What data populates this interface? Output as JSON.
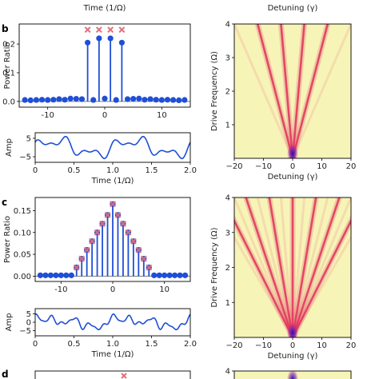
{
  "figure": {
    "top_labels": [
      "Time (1/Ω)",
      "Detuning (γ)"
    ],
    "panel_letters": [
      "b",
      "c",
      "d"
    ]
  },
  "colors": {
    "stem": "#1f4fd6",
    "marker_theory": "#e0707c",
    "baseline": "#888888",
    "heat_background": "#f7f4b8",
    "heat_line": "#e0305a",
    "heat_center": "#3a1fbf"
  },
  "chart_data": [
    {
      "id": "b-power",
      "type": "stem",
      "ylabel": "Power Ratio",
      "xlim": [
        -15,
        15
      ],
      "ylim": [
        -0.02,
        0.27
      ],
      "xticks": [
        -10,
        0,
        10
      ],
      "yticks": [
        0.0,
        0.1,
        0.2
      ],
      "ytick_labels": [
        "0.0",
        "0.1",
        "0.2"
      ],
      "x": [
        -14,
        -13,
        -12,
        -11,
        -10,
        -9,
        -8,
        -7,
        -6,
        -5,
        -4,
        -3,
        -2,
        -1,
        0,
        1,
        2,
        3,
        4,
        5,
        6,
        7,
        8,
        9,
        10,
        11,
        12,
        13,
        14
      ],
      "values": [
        0.005,
        0.004,
        0.005,
        0.006,
        0.005,
        0.006,
        0.008,
        0.006,
        0.01,
        0.009,
        0.008,
        0.205,
        0.005,
        0.22,
        0.01,
        0.22,
        0.005,
        0.205,
        0.008,
        0.009,
        0.01,
        0.006,
        0.008,
        0.006,
        0.005,
        0.006,
        0.005,
        0.004,
        0.005
      ],
      "theory_x": [
        -3,
        -1,
        1,
        3
      ],
      "theory_y": [
        0.25,
        0.25,
        0.25,
        0.25
      ]
    },
    {
      "id": "b-drive",
      "type": "line",
      "xlabel": "Time (1/Ω)",
      "ylabel": "Amp",
      "xlim": [
        0,
        2
      ],
      "ylim": [
        -8,
        8
      ],
      "xticks": [
        0,
        0.5,
        1.0,
        1.5,
        2.0
      ],
      "xtick_labels": [
        "0",
        "0.5",
        "1.0",
        "1.5",
        "2.0"
      ],
      "yticks": [
        5,
        -5
      ],
      "ytick_labels": [
        "5",
        "−5"
      ],
      "components": [
        [
          1,
          3.5,
          0
        ],
        [
          3,
          2.5,
          0.6
        ],
        [
          5,
          1.5,
          1.3
        ]
      ]
    },
    {
      "id": "b-heat",
      "type": "heatmap",
      "xlabel": "Detuning (γ)",
      "ylabel": "Drive Frequency (Ω)",
      "xlim": [
        -20,
        20
      ],
      "ylim": [
        0,
        4
      ],
      "xticks": [
        -20,
        -10,
        0,
        10,
        20
      ],
      "xtick_labels": [
        "−20",
        "−10",
        "0",
        "10",
        "20"
      ],
      "yticks": [
        1,
        2,
        3,
        4
      ],
      "harmonics": [
        -3,
        -1,
        1,
        3
      ],
      "faint_harmonics": [
        -5,
        5
      ]
    },
    {
      "id": "c-power",
      "type": "stem",
      "ylabel": "Power Ratio",
      "xlim": [
        -15,
        15
      ],
      "ylim": [
        -0.012,
        0.18
      ],
      "xticks": [
        -10,
        0,
        10
      ],
      "yticks": [
        0.0,
        0.05,
        0.1,
        0.15
      ],
      "ytick_labels": [
        "0.00",
        "0.05",
        "0.10",
        "0.15"
      ],
      "x": [
        -14,
        -13,
        -12,
        -11,
        -10,
        -9,
        -8,
        -7,
        -6,
        -5,
        -4,
        -3,
        -2,
        -1,
        0,
        1,
        2,
        3,
        4,
        5,
        6,
        7,
        8,
        9,
        10,
        11,
        12,
        13,
        14
      ],
      "values": [
        0.002,
        0.002,
        0.002,
        0.002,
        0.002,
        0.002,
        0.002,
        0.02,
        0.04,
        0.06,
        0.08,
        0.1,
        0.12,
        0.14,
        0.165,
        0.14,
        0.12,
        0.1,
        0.08,
        0.06,
        0.04,
        0.02,
        0.002,
        0.002,
        0.002,
        0.002,
        0.002,
        0.002,
        0.002
      ],
      "theory_x": [
        -7,
        -6,
        -5,
        -4,
        -3,
        -2,
        -1,
        0,
        1,
        2,
        3,
        4,
        5,
        6,
        7
      ],
      "theory_y": [
        0.02,
        0.04,
        0.06,
        0.08,
        0.1,
        0.12,
        0.14,
        0.165,
        0.14,
        0.12,
        0.1,
        0.08,
        0.06,
        0.04,
        0.02
      ]
    },
    {
      "id": "c-drive",
      "type": "line",
      "xlabel": "Time (1/Ω)",
      "ylabel": "Amp",
      "xlim": [
        0,
        2
      ],
      "ylim": [
        -8,
        8
      ],
      "xticks": [
        0,
        0.5,
        1.0,
        1.5,
        2.0
      ],
      "xtick_labels": [
        "0",
        "0.5",
        "1.0",
        "1.5",
        "2.0"
      ],
      "yticks": [
        5,
        0,
        -5
      ],
      "ytick_labels": [
        "5",
        "0",
        "−5"
      ],
      "components": [
        [
          1,
          2.0,
          0.3
        ],
        [
          2,
          1.5,
          1.1
        ],
        [
          4,
          1.5,
          2.0
        ],
        [
          6,
          1.2,
          0.5
        ],
        [
          9,
          0.8,
          1.7
        ]
      ]
    },
    {
      "id": "c-heat",
      "type": "heatmap",
      "xlabel": "Detuning (γ)",
      "ylabel": "Drive Frequency (Ω)",
      "xlim": [
        -20,
        20
      ],
      "ylim": [
        0,
        4
      ],
      "xticks": [
        -20,
        -10,
        0,
        10,
        20
      ],
      "xtick_labels": [
        "−20",
        "−10",
        "0",
        "10",
        "20"
      ],
      "yticks": [
        1,
        2,
        3,
        4
      ],
      "harmonics": [
        -6,
        -4,
        -2,
        0,
        2,
        4,
        6
      ],
      "faint_harmonics": [
        -7,
        -5,
        -3,
        -1,
        1,
        3,
        5,
        7
      ]
    },
    {
      "id": "d-heat",
      "type": "heatmap",
      "yticks": [
        4
      ],
      "xlim": [
        -20,
        20
      ],
      "ylim": [
        0,
        4
      ]
    }
  ]
}
